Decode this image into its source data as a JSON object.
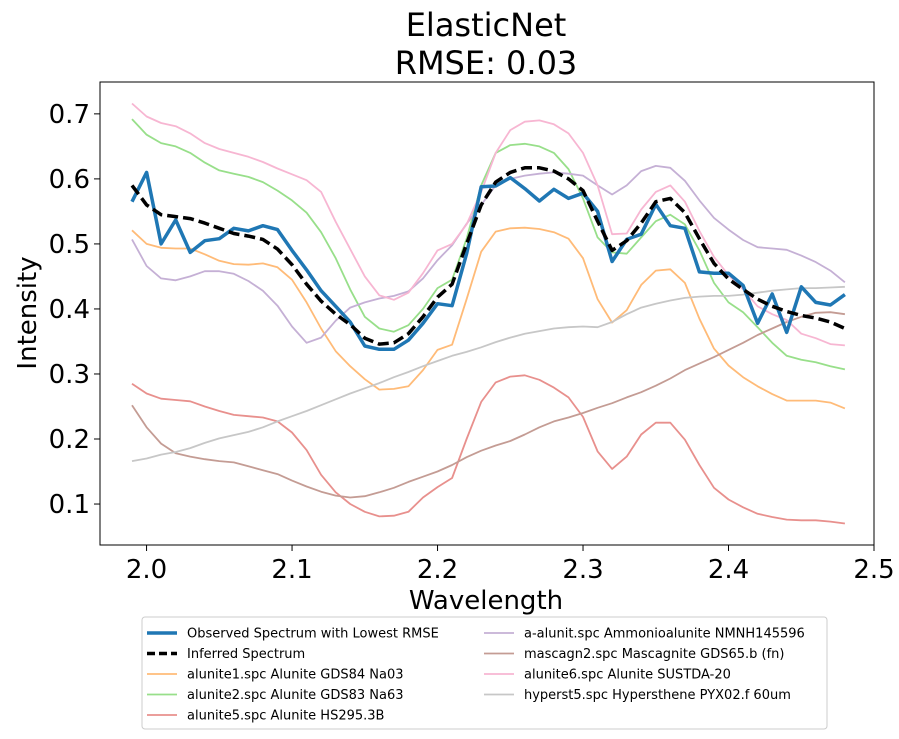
{
  "chart_data": {
    "type": "line",
    "title": "ElasticNet",
    "subtitle": "RMSE: 0.03",
    "xlabel": "Wavelength",
    "ylabel": "Intensity",
    "xlim": [
      1.968,
      2.5
    ],
    "ylim": [
      0.037,
      0.749
    ],
    "xticks": [
      2.0,
      2.1,
      2.2,
      2.3,
      2.4,
      2.5
    ],
    "xtick_labels": [
      "2.0",
      "2.1",
      "2.2",
      "2.3",
      "2.4",
      "2.5"
    ],
    "yticks": [
      0.1,
      0.2,
      0.3,
      0.4,
      0.5,
      0.6,
      0.7
    ],
    "ytick_labels": [
      "0.1",
      "0.2",
      "0.3",
      "0.4",
      "0.5",
      "0.6",
      "0.7"
    ],
    "legend_position": "bottom-center, below axes, two columns",
    "x": [
      1.99,
      2.0,
      2.01,
      2.02,
      2.03,
      2.04,
      2.05,
      2.06,
      2.07,
      2.08,
      2.09,
      2.1,
      2.11,
      2.12,
      2.13,
      2.14,
      2.15,
      2.16,
      2.17,
      2.18,
      2.19,
      2.2,
      2.21,
      2.22,
      2.23,
      2.24,
      2.25,
      2.26,
      2.27,
      2.28,
      2.29,
      2.3,
      2.31,
      2.32,
      2.33,
      2.34,
      2.35,
      2.36,
      2.37,
      2.38,
      2.39,
      2.4,
      2.41,
      2.42,
      2.43,
      2.44,
      2.45,
      2.46,
      2.47,
      2.48
    ],
    "series": [
      {
        "name": "Observed Spectrum with Lowest RMSE",
        "color": "#1f77b4",
        "style": "solid-thick",
        "values": [
          0.565,
          0.61,
          0.5,
          0.537,
          0.487,
          0.505,
          0.508,
          0.524,
          0.52,
          0.528,
          0.522,
          0.49,
          0.46,
          0.428,
          0.404,
          0.38,
          0.343,
          0.338,
          0.338,
          0.352,
          0.378,
          0.408,
          0.405,
          0.485,
          0.588,
          0.589,
          0.602,
          0.585,
          0.566,
          0.584,
          0.57,
          0.578,
          0.55,
          0.473,
          0.507,
          0.515,
          0.561,
          0.528,
          0.524,
          0.457,
          0.455,
          0.455,
          0.436,
          0.378,
          0.423,
          0.364,
          0.434,
          0.41,
          0.406,
          0.422
        ]
      },
      {
        "name": "Inferred Spectrum",
        "color": "#000000",
        "style": "dashed-thick",
        "values": [
          0.59,
          0.56,
          0.545,
          0.542,
          0.539,
          0.532,
          0.524,
          0.516,
          0.512,
          0.507,
          0.492,
          0.468,
          0.438,
          0.412,
          0.392,
          0.376,
          0.355,
          0.346,
          0.348,
          0.362,
          0.388,
          0.418,
          0.438,
          0.5,
          0.56,
          0.595,
          0.61,
          0.617,
          0.617,
          0.612,
          0.6,
          0.582,
          0.535,
          0.49,
          0.505,
          0.532,
          0.565,
          0.57,
          0.548,
          0.508,
          0.47,
          0.446,
          0.43,
          0.415,
          0.404,
          0.396,
          0.39,
          0.386,
          0.38,
          0.37
        ]
      },
      {
        "name": "alunite1.spc Alunite GDS84 Na03",
        "color": "#ffbb78",
        "style": "solid",
        "values": [
          0.521,
          0.5,
          0.494,
          0.493,
          0.493,
          0.484,
          0.474,
          0.469,
          0.468,
          0.47,
          0.464,
          0.445,
          0.41,
          0.37,
          0.335,
          0.312,
          0.292,
          0.276,
          0.277,
          0.281,
          0.306,
          0.337,
          0.345,
          0.415,
          0.488,
          0.519,
          0.524,
          0.525,
          0.523,
          0.518,
          0.508,
          0.478,
          0.415,
          0.379,
          0.398,
          0.437,
          0.459,
          0.461,
          0.44,
          0.385,
          0.339,
          0.313,
          0.295,
          0.281,
          0.269,
          0.259,
          0.259,
          0.259,
          0.256,
          0.247
        ]
      },
      {
        "name": "alunite2.spc Alunite GDS83 Na63",
        "color": "#98df8a",
        "style": "solid",
        "values": [
          0.692,
          0.668,
          0.655,
          0.65,
          0.64,
          0.625,
          0.613,
          0.608,
          0.603,
          0.595,
          0.582,
          0.567,
          0.548,
          0.518,
          0.478,
          0.43,
          0.388,
          0.37,
          0.365,
          0.375,
          0.4,
          0.432,
          0.445,
          0.508,
          0.59,
          0.64,
          0.652,
          0.654,
          0.65,
          0.64,
          0.615,
          0.57,
          0.51,
          0.487,
          0.485,
          0.51,
          0.535,
          0.545,
          0.53,
          0.49,
          0.44,
          0.41,
          0.395,
          0.372,
          0.348,
          0.328,
          0.322,
          0.318,
          0.312,
          0.307
        ]
      },
      {
        "name": "alunite5.spc Alunite HS295.3B",
        "color": "#e8908d",
        "style": "solid",
        "values": [
          0.285,
          0.27,
          0.262,
          0.26,
          0.258,
          0.25,
          0.243,
          0.237,
          0.235,
          0.233,
          0.227,
          0.21,
          0.183,
          0.145,
          0.118,
          0.1,
          0.088,
          0.081,
          0.082,
          0.088,
          0.11,
          0.126,
          0.14,
          0.2,
          0.257,
          0.287,
          0.296,
          0.298,
          0.291,
          0.279,
          0.264,
          0.234,
          0.181,
          0.154,
          0.173,
          0.207,
          0.225,
          0.225,
          0.199,
          0.16,
          0.125,
          0.107,
          0.095,
          0.085,
          0.08,
          0.076,
          0.075,
          0.075,
          0.073,
          0.07
        ]
      },
      {
        "name": "a-alunit.spc Ammonioalunite NMNH145596",
        "color": "#c5b0d5",
        "style": "solid",
        "values": [
          0.507,
          0.466,
          0.447,
          0.444,
          0.45,
          0.458,
          0.458,
          0.454,
          0.443,
          0.428,
          0.405,
          0.373,
          0.348,
          0.356,
          0.382,
          0.402,
          0.41,
          0.416,
          0.42,
          0.427,
          0.447,
          0.475,
          0.498,
          0.531,
          0.56,
          0.59,
          0.6,
          0.605,
          0.608,
          0.61,
          0.608,
          0.605,
          0.59,
          0.576,
          0.59,
          0.612,
          0.62,
          0.617,
          0.597,
          0.567,
          0.54,
          0.522,
          0.506,
          0.495,
          0.493,
          0.491,
          0.482,
          0.472,
          0.459,
          0.441
        ]
      },
      {
        "name": "mascagn2.spc Mascagnite GDS65.b (fn)",
        "color": "#c49c94",
        "style": "solid",
        "values": [
          0.252,
          0.218,
          0.193,
          0.178,
          0.173,
          0.169,
          0.166,
          0.164,
          0.158,
          0.152,
          0.146,
          0.136,
          0.127,
          0.119,
          0.113,
          0.11,
          0.112,
          0.118,
          0.125,
          0.134,
          0.142,
          0.15,
          0.16,
          0.172,
          0.182,
          0.19,
          0.197,
          0.207,
          0.218,
          0.227,
          0.233,
          0.24,
          0.248,
          0.255,
          0.264,
          0.272,
          0.282,
          0.293,
          0.306,
          0.316,
          0.326,
          0.337,
          0.348,
          0.36,
          0.37,
          0.38,
          0.388,
          0.394,
          0.395,
          0.392
        ]
      },
      {
        "name": "alunite6.spc Alunite SUSTDA-20",
        "color": "#f7b6d2",
        "style": "solid",
        "values": [
          0.716,
          0.696,
          0.686,
          0.681,
          0.67,
          0.655,
          0.646,
          0.64,
          0.634,
          0.626,
          0.616,
          0.607,
          0.598,
          0.58,
          0.534,
          0.492,
          0.45,
          0.421,
          0.414,
          0.425,
          0.455,
          0.49,
          0.5,
          0.53,
          0.58,
          0.64,
          0.675,
          0.688,
          0.69,
          0.684,
          0.67,
          0.64,
          0.59,
          0.515,
          0.516,
          0.553,
          0.58,
          0.59,
          0.565,
          0.52,
          0.48,
          0.452,
          0.43,
          0.404,
          0.392,
          0.383,
          0.362,
          0.355,
          0.346,
          0.344
        ]
      },
      {
        "name": "hyperst5.spc Hypersthene PYX02.f 60um",
        "color": "#c7c7c7",
        "style": "solid",
        "values": [
          0.166,
          0.17,
          0.176,
          0.18,
          0.186,
          0.194,
          0.201,
          0.206,
          0.211,
          0.218,
          0.227,
          0.235,
          0.243,
          0.252,
          0.261,
          0.27,
          0.278,
          0.286,
          0.295,
          0.303,
          0.312,
          0.32,
          0.328,
          0.334,
          0.341,
          0.349,
          0.356,
          0.362,
          0.366,
          0.37,
          0.372,
          0.373,
          0.372,
          0.38,
          0.392,
          0.402,
          0.408,
          0.413,
          0.417,
          0.419,
          0.42,
          0.42,
          0.422,
          0.425,
          0.428,
          0.43,
          0.432,
          0.432,
          0.433,
          0.434
        ]
      }
    ]
  }
}
